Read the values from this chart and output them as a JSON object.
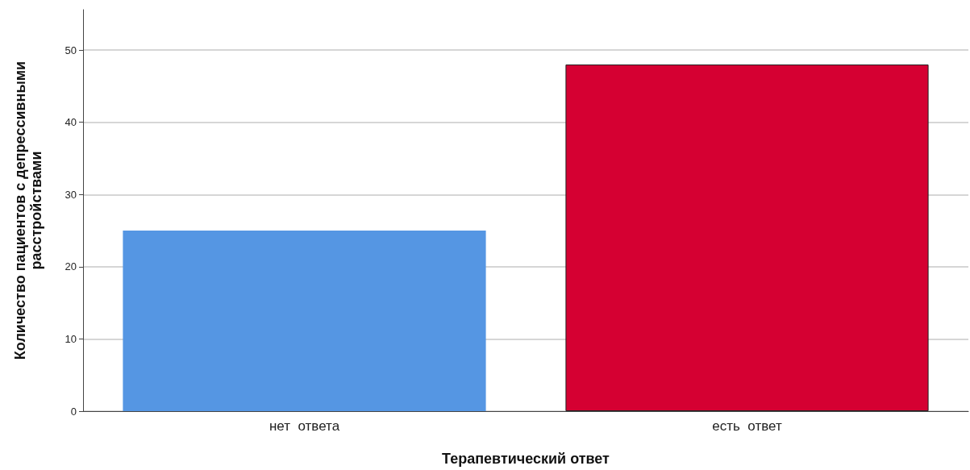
{
  "chart_data": {
    "type": "bar",
    "xlabel": "Терапевтический ответ",
    "ylabel": "Количество пациентов с депрессивными\nрасстройствами",
    "categories": [
      "нет  ответа",
      "есть  ответ"
    ],
    "values": [
      25,
      48
    ],
    "colors": [
      "#5596e3",
      "#d50032"
    ],
    "ylim": [
      0,
      55.6
    ],
    "yticks": [
      0,
      10,
      20,
      30,
      40,
      50
    ],
    "grid": "y"
  }
}
